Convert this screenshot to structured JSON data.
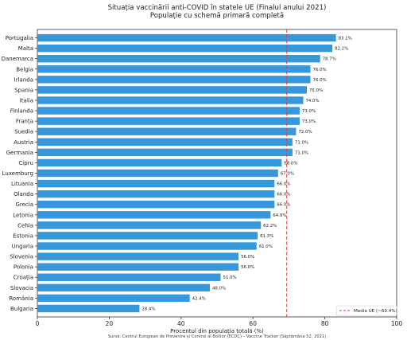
{
  "chart_data": {
    "type": "bar",
    "orientation": "horizontal",
    "title": "Situația vaccinării anti-COVID în statele UE (Finalul anului 2021)",
    "subtitle": "Populație cu schemă primară completă",
    "xlabel": "Procentul din populația totală (%)",
    "ylabel": "",
    "xlim": [
      0,
      100
    ],
    "xticks": [
      "0",
      "20",
      "40",
      "60",
      "80",
      "100"
    ],
    "categories": [
      "Portugalia",
      "Malta",
      "Danemarca",
      "Belgia",
      "Irlanda",
      "Spania",
      "Italia",
      "Finlanda",
      "Franța",
      "Suedia",
      "Austria",
      "Germania",
      "Cipru",
      "Luxemburg",
      "Lituania",
      "Olanda",
      "Grecia",
      "Letonia",
      "Cehia",
      "Estonia",
      "Ungaria",
      "Slovenia",
      "Polonia",
      "Croația",
      "Slovacia",
      "România",
      "Bulgaria"
    ],
    "values": [
      83.1,
      82.1,
      78.7,
      76.0,
      76.0,
      75.0,
      74.0,
      73.0,
      73.0,
      72.0,
      71.0,
      71.0,
      68.0,
      67.0,
      66.0,
      66.0,
      66.0,
      64.9,
      62.2,
      61.3,
      61.0,
      56.0,
      56.0,
      51.0,
      48.0,
      42.4,
      28.4
    ],
    "value_labels": [
      "83.1%",
      "82.1%",
      "78.7%",
      "76.0%",
      "76.0%",
      "75.0%",
      "74.0%",
      "73.0%",
      "73.0%",
      "72.0%",
      "71.0%",
      "71.0%",
      "68.0%",
      "67.0%",
      "66.0%",
      "66.0%",
      "66.0%",
      "64.9%",
      "62.2%",
      "61.3%",
      "61.0%",
      "56.0%",
      "56.0%",
      "51.0%",
      "48.0%",
      "42.4%",
      "28.4%"
    ],
    "reference_line": {
      "value": 69.4,
      "label": "Media UE (~69.4%)",
      "style": "dashed",
      "color": "#e53935"
    },
    "bar_color": "#3498db",
    "legend_position": "bottom-right",
    "source": "Sursă: Centrul European de Prevenire și Control al Bolilor (ECDC) – Vaccine Tracker (Săptămâna 52, 2021)"
  }
}
